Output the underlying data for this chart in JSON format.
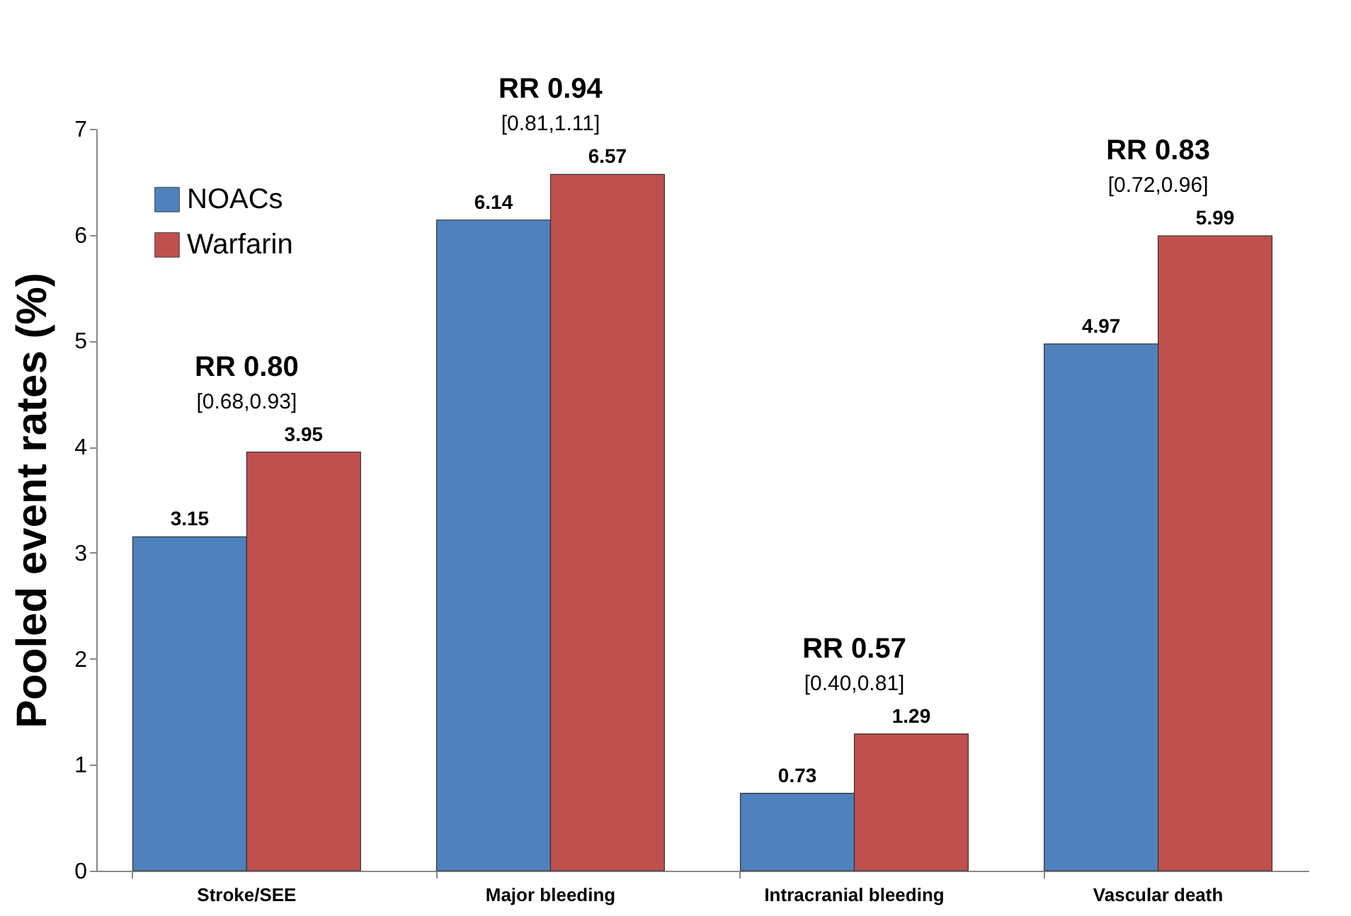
{
  "chart_data": {
    "type": "bar",
    "ylabel": "Pooled event rates (%)",
    "categories": [
      "Stroke/SEE",
      "Major bleeding",
      "Intracranial bleeding",
      "Vascular death"
    ],
    "series": [
      {
        "name": "NOACs",
        "color": "#4f81bd",
        "values": [
          3.15,
          6.14,
          0.73,
          4.97
        ]
      },
      {
        "name": "Warfarin",
        "color": "#c0504d",
        "values": [
          3.95,
          6.57,
          1.29,
          5.99
        ]
      }
    ],
    "ylim": [
      0,
      7
    ],
    "yticks": [
      0,
      1,
      2,
      3,
      4,
      5,
      6,
      7
    ],
    "grid": false,
    "legend": "top left",
    "data_labels": true,
    "annotations": [
      "RR 0.80",
      "[0.68,0.93]",
      "RR 0.94",
      "[0.81,1.11]",
      "RR 0.57",
      "[0.40,0.81]",
      "RR 0.83",
      "[0.72,0.96]"
    ]
  }
}
